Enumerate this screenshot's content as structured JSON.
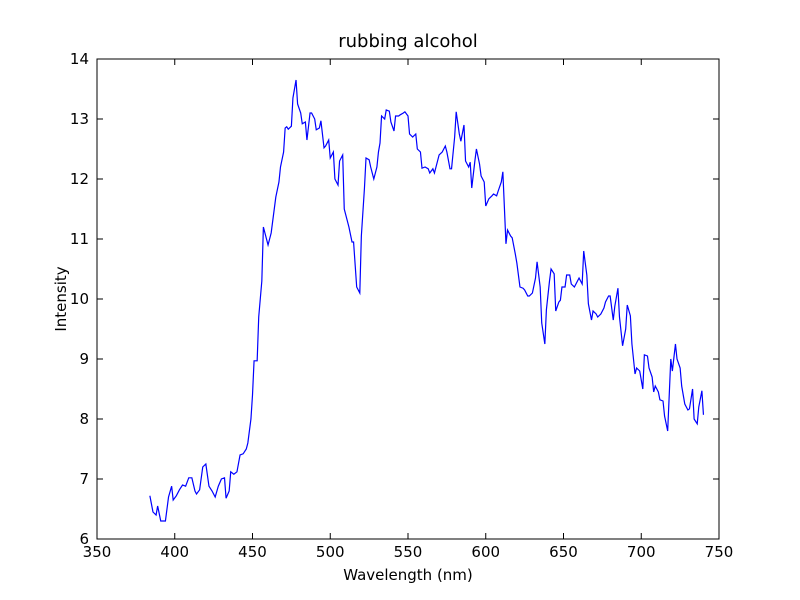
{
  "chart_data": {
    "type": "line",
    "title": "rubbing alcohol",
    "x_label": "Wavelength (nm)",
    "y_label": "Intensity",
    "color": "#0000ff",
    "grid": false,
    "xlim": [
      350,
      750
    ],
    "xticks": [
      350,
      400,
      450,
      500,
      550,
      600,
      650,
      700,
      750
    ],
    "ylim": [
      6,
      14
    ],
    "yticks": [
      6,
      7,
      8,
      9,
      10,
      11,
      12,
      13,
      14
    ],
    "x": [
      384,
      386,
      388,
      389,
      391,
      394,
      396,
      398,
      399,
      401,
      403,
      405,
      407,
      409,
      411,
      413,
      414,
      416,
      418,
      420,
      422,
      424,
      426,
      428,
      430,
      432,
      433,
      435,
      436,
      438,
      440,
      442,
      444,
      446,
      447,
      449,
      450,
      451,
      453,
      454,
      456,
      457,
      459,
      460,
      462,
      463,
      465,
      467,
      468,
      470,
      471,
      472,
      473,
      475,
      476,
      478,
      479,
      481,
      482,
      484,
      485,
      487,
      488,
      490,
      491,
      493,
      494,
      496,
      497,
      499,
      500,
      502,
      503,
      505,
      506,
      508,
      509,
      511,
      512,
      514,
      515,
      517,
      519,
      520,
      522,
      523,
      525,
      526,
      528,
      530,
      531,
      532,
      533,
      535,
      536,
      538,
      539,
      541,
      542,
      544,
      545,
      547,
      548,
      550,
      551,
      553,
      555,
      556,
      558,
      559,
      561,
      563,
      564,
      566,
      567,
      569,
      570,
      572,
      574,
      575,
      577,
      578,
      580,
      581,
      583,
      584,
      586,
      587,
      589,
      590,
      591,
      593,
      594,
      596,
      597,
      599,
      600,
      602,
      604,
      605,
      607,
      608,
      610,
      611,
      613,
      614,
      616,
      617,
      619,
      620,
      622,
      624,
      625,
      627,
      628,
      630,
      632,
      633,
      635,
      636,
      638,
      639,
      641,
      642,
      644,
      645,
      647,
      648,
      649,
      651,
      652,
      654,
      655,
      657,
      659,
      660,
      662,
      663,
      665,
      666,
      668,
      669,
      671,
      672,
      674,
      676,
      677,
      679,
      680,
      682,
      683,
      685,
      686,
      688,
      690,
      691,
      693,
      694,
      696,
      697,
      699,
      701,
      702,
      704,
      705,
      707,
      708,
      709,
      711,
      712,
      714,
      715,
      717,
      719,
      720,
      722,
      723,
      725,
      726,
      728,
      730,
      731,
      733,
      734,
      736,
      737,
      739,
      740
    ],
    "values": [
      6.72,
      6.45,
      6.4,
      6.55,
      6.3,
      6.3,
      6.7,
      6.88,
      6.65,
      6.72,
      6.82,
      6.9,
      6.88,
      7.02,
      7.02,
      6.8,
      6.75,
      6.82,
      7.2,
      7.25,
      6.88,
      6.8,
      6.7,
      6.88,
      7.0,
      7.02,
      6.68,
      6.8,
      7.12,
      7.08,
      7.12,
      7.4,
      7.42,
      7.5,
      7.6,
      8.0,
      8.4,
      8.97,
      8.97,
      9.7,
      10.3,
      11.2,
      11.0,
      10.9,
      11.1,
      11.3,
      11.7,
      11.95,
      12.2,
      12.45,
      12.85,
      12.87,
      12.83,
      12.88,
      13.35,
      13.65,
      13.25,
      13.1,
      12.92,
      12.95,
      12.65,
      13.1,
      13.1,
      13.0,
      12.82,
      12.85,
      12.97,
      12.52,
      12.55,
      12.65,
      12.35,
      12.45,
      12.0,
      11.9,
      12.3,
      12.4,
      11.5,
      11.3,
      11.2,
      10.95,
      10.95,
      10.2,
      10.1,
      11.05,
      11.85,
      12.35,
      12.32,
      12.2,
      12.0,
      12.2,
      12.45,
      12.6,
      13.05,
      13.0,
      13.15,
      13.13,
      12.95,
      12.8,
      13.05,
      13.05,
      13.07,
      13.1,
      13.12,
      13.05,
      12.75,
      12.7,
      12.75,
      12.5,
      12.45,
      12.18,
      12.2,
      12.17,
      12.1,
      12.17,
      12.1,
      12.3,
      12.4,
      12.45,
      12.55,
      12.45,
      12.17,
      12.17,
      12.7,
      13.12,
      12.75,
      12.63,
      12.9,
      12.3,
      12.2,
      12.28,
      11.85,
      12.3,
      12.5,
      12.25,
      12.05,
      11.95,
      11.55,
      11.67,
      11.72,
      11.75,
      11.72,
      11.8,
      11.95,
      12.12,
      10.92,
      11.15,
      11.05,
      11.02,
      10.75,
      10.6,
      10.2,
      10.18,
      10.15,
      10.05,
      10.05,
      10.1,
      10.35,
      10.62,
      10.2,
      9.6,
      9.25,
      9.82,
      10.3,
      10.5,
      10.42,
      9.8,
      9.95,
      9.98,
      10.2,
      10.2,
      10.4,
      10.4,
      10.25,
      10.2,
      10.3,
      10.35,
      10.25,
      10.8,
      10.4,
      9.92,
      9.65,
      9.8,
      9.75,
      9.7,
      9.75,
      9.85,
      9.95,
      10.05,
      10.05,
      9.65,
      9.88,
      10.18,
      9.7,
      9.22,
      9.5,
      9.9,
      9.72,
      9.25,
      8.75,
      8.85,
      8.8,
      8.5,
      9.07,
      9.05,
      8.85,
      8.7,
      8.45,
      8.55,
      8.45,
      8.32,
      8.3,
      8.05,
      7.8,
      9.0,
      8.8,
      9.25,
      9.0,
      8.85,
      8.55,
      8.25,
      8.15,
      8.17,
      8.5,
      8.0,
      7.92,
      8.2,
      8.47,
      8.07
    ]
  }
}
